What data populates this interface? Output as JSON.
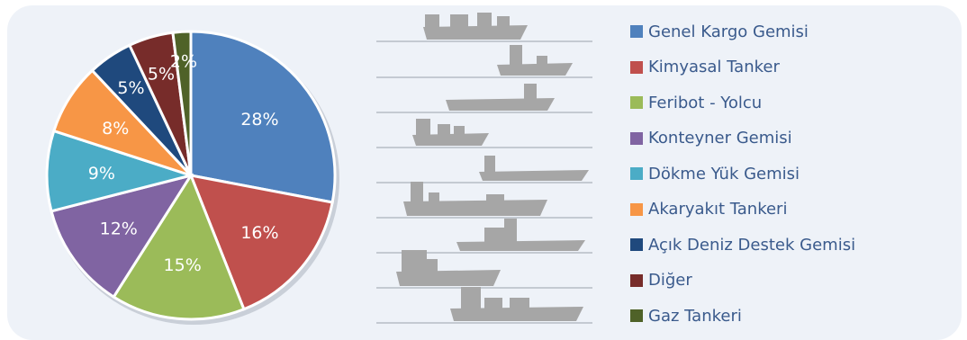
{
  "chart_data": {
    "type": "pie",
    "slices": [
      {
        "label": "Genel Kargo Gemisi",
        "value": 28,
        "display": "28%",
        "color": "#4f81bd"
      },
      {
        "label": "Kimyasal Tanker",
        "value": 16,
        "display": "16%",
        "color": "#c0504d"
      },
      {
        "label": "Feribot - Yolcu",
        "value": 15,
        "display": "15%",
        "color": "#9bbb59"
      },
      {
        "label": "Konteyner Gemisi",
        "value": 12,
        "display": "12%",
        "color": "#8064a2"
      },
      {
        "label": "Dökme Yük Gemisi",
        "value": 9,
        "display": "9%",
        "color": "#4bacc6"
      },
      {
        "label": "Akaryakıt Tankeri",
        "value": 8,
        "display": "8%",
        "color": "#f79646"
      },
      {
        "label": "Açık Deniz Destek Gemisi",
        "value": 5,
        "display": "5%",
        "color": "#1f497d"
      },
      {
        "label": "Diğer",
        "value": 5,
        "display": "5%",
        "color": "#772c2a"
      },
      {
        "label": "Gaz Tankeri",
        "value": 2,
        "display": "2%",
        "color": "#4f6228"
      }
    ],
    "legend_position": "right"
  },
  "ship_icons": [
    "general-cargo-ship-icon",
    "chemical-tanker-icon",
    "ferry-icon",
    "container-ship-icon",
    "bulk-carrier-icon",
    "fuel-tanker-icon",
    "offshore-supply-vessel-icon",
    "other-vessel-icon",
    "gas-tanker-icon"
  ],
  "ship_color": "#a6a6a6"
}
